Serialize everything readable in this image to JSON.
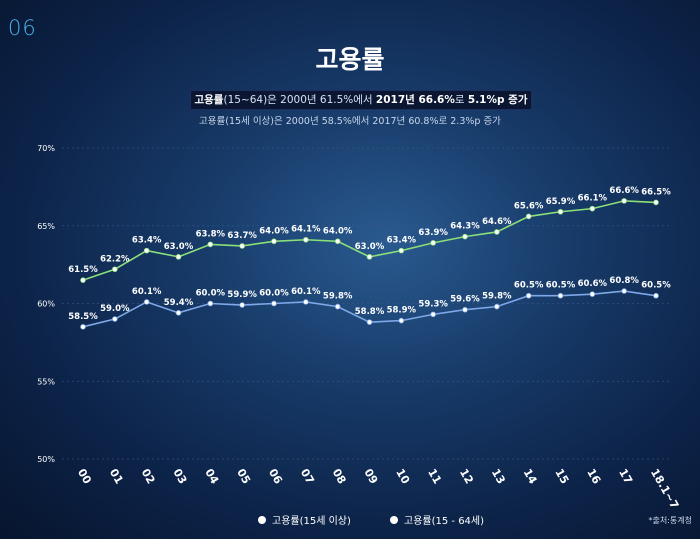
{
  "slide_number": "06",
  "title": "고용률",
  "subtitle_main": {
    "part1": "고용률",
    "part2": "(15~64)은 2000년 61.5%에서 ",
    "part3": "2017년 66.6%",
    "part4": "로 ",
    "part5": "5.1%p 증가"
  },
  "subtitle_secondary": "고용률(15세 이상)은 2000년 58.5%에서 2017년 60.8%로 2.3%p 증가",
  "source": "*출처:통계청",
  "legend": {
    "item1": "고용률(15세 이상)",
    "item2": "고용률(15 - 64세)"
  },
  "colors": {
    "green_line": "#8be07a",
    "blue_line": "#7fa8e8",
    "grid": "#3a5a86"
  },
  "chart_data": {
    "type": "line",
    "categories": [
      "00",
      "01",
      "02",
      "03",
      "04",
      "05",
      "06",
      "07",
      "08",
      "09",
      "10",
      "11",
      "12",
      "13",
      "14",
      "15",
      "16",
      "17",
      "18.1~7"
    ],
    "y_ticks": [
      "70%",
      "65%",
      "60%",
      "55%",
      "50%"
    ],
    "ylim": [
      50,
      70
    ],
    "grid": true,
    "legend_position": "bottom",
    "series": [
      {
        "name": "고용률(15 - 64세)",
        "values": [
          61.5,
          62.2,
          63.4,
          63.0,
          63.8,
          63.7,
          64.0,
          64.1,
          64.0,
          63.0,
          63.4,
          63.9,
          64.3,
          64.6,
          65.6,
          65.9,
          66.1,
          66.6,
          66.5
        ],
        "labels": [
          "61.5%",
          "62.2%",
          "63.4%",
          "63.0%",
          "63.8%",
          "63.7%",
          "64.0%",
          "64.1%",
          "64.0%",
          "63.0%",
          "63.4%",
          "63.9%",
          "64.3%",
          "64.6%",
          "65.6%",
          "65.9%",
          "66.1%",
          "66.6%",
          "66.5%"
        ]
      },
      {
        "name": "고용률(15세 이상)",
        "values": [
          58.5,
          59.0,
          60.1,
          59.4,
          60.0,
          59.9,
          60.0,
          60.1,
          59.8,
          58.8,
          58.9,
          59.3,
          59.6,
          59.8,
          60.5,
          60.5,
          60.6,
          60.8,
          60.5
        ],
        "labels": [
          "58.5%",
          "59.0%",
          "60.1%",
          "59.4%",
          "60.0%",
          "59.9%",
          "60.0%",
          "60.1%",
          "59.8%",
          "58.8%",
          "58.9%",
          "59.3%",
          "59.6%",
          "59.8%",
          "60.5%",
          "60.5%",
          "60.6%",
          "60.8%",
          "60.5%"
        ]
      }
    ]
  }
}
